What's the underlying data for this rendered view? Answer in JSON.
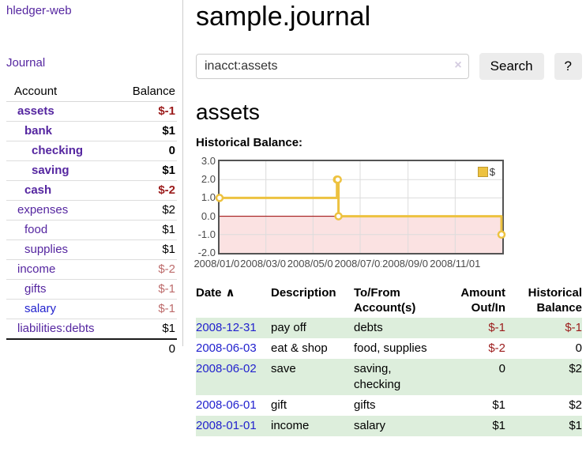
{
  "app": {
    "brand": "hledger-web"
  },
  "nav": {
    "journal": "Journal"
  },
  "sidebar": {
    "accounts": {
      "col_account": "Account",
      "col_balance": "Balance",
      "rows": [
        {
          "label": "assets",
          "balance": "$-1",
          "indent": 1,
          "bold": true,
          "neg": "strong",
          "blue": false
        },
        {
          "label": "bank",
          "balance": "$1",
          "indent": 2,
          "bold": true,
          "neg": "none",
          "blue": false
        },
        {
          "label": "checking",
          "balance": "0",
          "indent": 3,
          "bold": true,
          "neg": "none",
          "blue": false
        },
        {
          "label": "saving",
          "balance": "$1",
          "indent": 3,
          "bold": true,
          "neg": "none",
          "blue": false
        },
        {
          "label": "cash",
          "balance": "$-2",
          "indent": 2,
          "bold": true,
          "neg": "strong",
          "blue": false
        },
        {
          "label": "expenses",
          "balance": "$2",
          "indent": 1,
          "bold": false,
          "neg": "none",
          "blue": false
        },
        {
          "label": "food",
          "balance": "$1",
          "indent": 2,
          "bold": false,
          "neg": "none",
          "blue": false
        },
        {
          "label": "supplies",
          "balance": "$1",
          "indent": 2,
          "bold": false,
          "neg": "none",
          "blue": false
        },
        {
          "label": "income",
          "balance": "$-2",
          "indent": 1,
          "bold": false,
          "neg": "light",
          "blue": false
        },
        {
          "label": "gifts",
          "balance": "$-1",
          "indent": 2,
          "bold": false,
          "neg": "light",
          "blue": false
        },
        {
          "label": "salary",
          "balance": "$-1",
          "indent": 2,
          "bold": false,
          "neg": "light",
          "blue": true
        },
        {
          "label": "liabilities:debts",
          "balance": "$1",
          "indent": 1,
          "bold": false,
          "neg": "none",
          "blue": false
        }
      ],
      "total": "0"
    }
  },
  "main": {
    "title": "sample.journal",
    "account_heading": "assets",
    "chart_title": "Historical Balance:"
  },
  "search": {
    "value": "inacct:assets",
    "clear_icon": "×",
    "search_button": "Search",
    "help_button": "?"
  },
  "chart_data": {
    "type": "line",
    "title": "Historical Balance:",
    "x_type": "date",
    "xlim": [
      "2008-01-01",
      "2009-01-01"
    ],
    "ylim": [
      -2,
      3
    ],
    "yticks": [
      3.0,
      2.0,
      1.0,
      0.0,
      -1.0,
      -2.0
    ],
    "xtick_labels": [
      "2008/01/01",
      "2008/03/01",
      "2008/05/01",
      "2008/07/01",
      "2008/09/01",
      "2008/11/01"
    ],
    "series": [
      {
        "name": "$",
        "color": "#EDC240",
        "steps": true,
        "points": [
          [
            "2008-01-01",
            1
          ],
          [
            "2008-06-01",
            2
          ],
          [
            "2008-06-02",
            2
          ],
          [
            "2008-06-03",
            0
          ],
          [
            "2008-12-31",
            -1
          ]
        ]
      }
    ],
    "legend_position": "top-right",
    "grid": true,
    "grid_color": "#dcdcdc",
    "negative_region_color": "#FBE2E2",
    "zero_line_color": "#9D0000",
    "border_color": "#545454"
  },
  "register": {
    "sort_icon": "∧",
    "headers": [
      {
        "lines": [
          "Date"
        ],
        "align": "left",
        "sorted": true
      },
      {
        "lines": [
          "Description"
        ],
        "align": "left",
        "sorted": false
      },
      {
        "lines": [
          "To/From",
          "Account(s)"
        ],
        "align": "left",
        "sorted": false
      },
      {
        "lines": [
          "Amount",
          "Out/In"
        ],
        "align": "right",
        "sorted": false
      },
      {
        "lines": [
          "Historical",
          "Balance"
        ],
        "align": "right",
        "sorted": false
      }
    ],
    "rows": [
      {
        "date": "2008-12-31",
        "description": "pay off",
        "accounts": "debts",
        "amount": "$-1",
        "amount_negative": true,
        "balance": "$-1",
        "balance_negative": true
      },
      {
        "date": "2008-06-03",
        "description": "eat & shop",
        "accounts": "food, supplies",
        "amount": "$-2",
        "amount_negative": true,
        "balance": "0",
        "balance_negative": false
      },
      {
        "date": "2008-06-02",
        "description": "save",
        "accounts": "saving, checking",
        "amount": "0",
        "amount_negative": false,
        "balance": "$2",
        "balance_negative": false
      },
      {
        "date": "2008-06-01",
        "description": "gift",
        "accounts": "gifts",
        "amount": "$1",
        "amount_negative": false,
        "balance": "$2",
        "balance_negative": false
      },
      {
        "date": "2008-01-01",
        "description": "income",
        "accounts": "salary",
        "amount": "$1",
        "amount_negative": false,
        "balance": "$1",
        "balance_negative": false
      }
    ]
  }
}
